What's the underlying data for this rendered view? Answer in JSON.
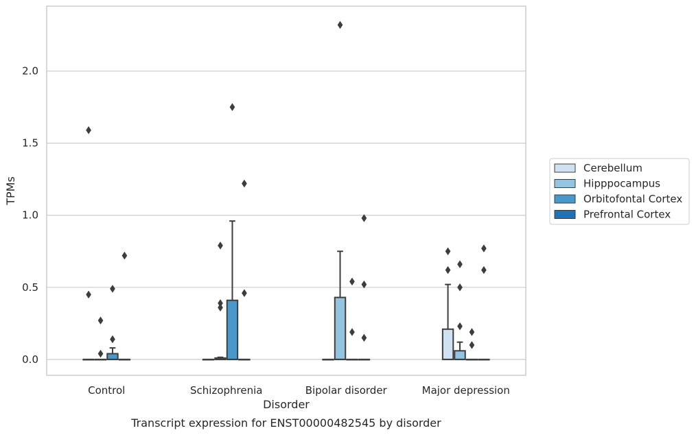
{
  "chart_data": {
    "type": "box",
    "title": "Transcript expression for ENST00000482545 by disorder",
    "xlabel": "Disorder",
    "ylabel": "TPMs",
    "ylim": [
      -0.11,
      2.45
    ],
    "yticks": [
      0.0,
      0.5,
      1.0,
      1.5,
      2.0
    ],
    "ytick_labels": [
      "0.0",
      "0.5",
      "1.0",
      "1.5",
      "2.0"
    ],
    "categories": [
      "Control",
      "Schizophrenia",
      "Bipolar disorder",
      "Major depression"
    ],
    "grid": "horizontal",
    "legend_position": "right",
    "series": [
      {
        "name": "Cerebellum",
        "color": "#d0e1f2",
        "boxes": [
          {
            "q1": 0.0,
            "median": 0.0,
            "q3": 0.0,
            "whisker_low": 0.0,
            "whisker_high": 0.0,
            "outliers": [
              1.59,
              0.45
            ]
          },
          {
            "q1": 0.0,
            "median": 0.0,
            "q3": 0.0,
            "whisker_low": 0.0,
            "whisker_high": 0.0,
            "outliers": []
          },
          {
            "q1": 0.0,
            "median": 0.0,
            "q3": 0.0,
            "whisker_low": 0.0,
            "whisker_high": 0.0,
            "outliers": []
          },
          {
            "q1": 0.0,
            "median": 0.0,
            "q3": 0.21,
            "whisker_low": 0.0,
            "whisker_high": 0.52,
            "outliers": [
              0.75,
              0.62
            ]
          }
        ]
      },
      {
        "name": "Hipppocampus",
        "color": "#94c4df",
        "boxes": [
          {
            "q1": 0.0,
            "median": 0.0,
            "q3": 0.0,
            "whisker_low": 0.0,
            "whisker_high": 0.0,
            "outliers": [
              0.27,
              0.04
            ]
          },
          {
            "q1": 0.0,
            "median": 0.0,
            "q3": 0.01,
            "whisker_low": 0.0,
            "whisker_high": 0.015,
            "outliers": [
              0.79,
              0.39,
              0.36
            ]
          },
          {
            "q1": 0.0,
            "median": 0.0,
            "q3": 0.43,
            "whisker_low": 0.0,
            "whisker_high": 0.75,
            "outliers": [
              2.32
            ]
          },
          {
            "q1": 0.0,
            "median": 0.0,
            "q3": 0.06,
            "whisker_low": 0.0,
            "whisker_high": 0.12,
            "outliers": [
              0.66,
              0.5,
              0.23
            ]
          }
        ]
      },
      {
        "name": "Orbitofontal Cortex",
        "color": "#4a98c9",
        "boxes": [
          {
            "q1": 0.0,
            "median": 0.0,
            "q3": 0.04,
            "whisker_low": 0.0,
            "whisker_high": 0.08,
            "outliers": [
              0.49,
              0.14
            ]
          },
          {
            "q1": 0.0,
            "median": 0.0,
            "q3": 0.41,
            "whisker_low": 0.0,
            "whisker_high": 0.96,
            "outliers": [
              1.75
            ]
          },
          {
            "q1": 0.0,
            "median": 0.0,
            "q3": 0.0,
            "whisker_low": 0.0,
            "whisker_high": 0.0,
            "outliers": [
              0.54,
              0.19
            ]
          },
          {
            "q1": 0.0,
            "median": 0.0,
            "q3": 0.0,
            "whisker_low": 0.0,
            "whisker_high": 0.0,
            "outliers": [
              0.19,
              0.1
            ]
          }
        ]
      },
      {
        "name": "Prefrontal Cortex",
        "color": "#2171b5",
        "boxes": [
          {
            "q1": 0.0,
            "median": 0.0,
            "q3": 0.0,
            "whisker_low": 0.0,
            "whisker_high": 0.0,
            "outliers": [
              0.72
            ]
          },
          {
            "q1": 0.0,
            "median": 0.0,
            "q3": 0.0,
            "whisker_low": 0.0,
            "whisker_high": 0.0,
            "outliers": [
              1.22,
              0.46
            ]
          },
          {
            "q1": 0.0,
            "median": 0.0,
            "q3": 0.0,
            "whisker_low": 0.0,
            "whisker_high": 0.0,
            "outliers": [
              0.98,
              0.52,
              0.15
            ]
          },
          {
            "q1": 0.0,
            "median": 0.0,
            "q3": 0.0,
            "whisker_low": 0.0,
            "whisker_high": 0.0,
            "outliers": [
              0.77,
              0.62
            ]
          }
        ]
      }
    ]
  },
  "colors": {
    "box_edge": "#3d3d3d",
    "grid": "#cccccc",
    "spine": "#cccccc",
    "text": "#262626"
  }
}
